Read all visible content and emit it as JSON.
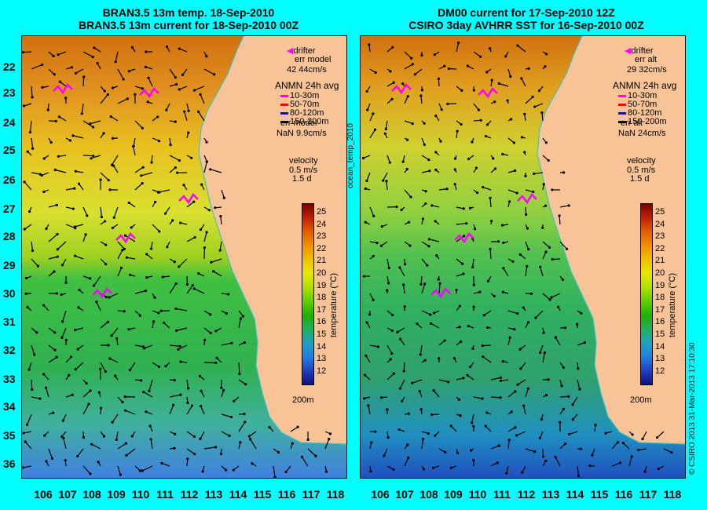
{
  "left": {
    "title1": "BRAN3.5 13m temp. 18-Sep-2010",
    "title2": "BRAN3.5 13m current for 18-Sep-2010 00Z",
    "drifter": "drifter",
    "err_model_1": "err model",
    "err_value_1": "42 44cm/s",
    "anmn": "ANMN 24h avg",
    "depths": [
      "10-30m",
      "50-70m",
      "80-120m",
      "150-200m"
    ],
    "err_model_2": "err model",
    "err_value_2": "NaN 9.9cm/s",
    "velocity": "velocity",
    "vel1": "0.5 m/s",
    "vel2": "1.5 d",
    "isobath": "200m"
  },
  "right": {
    "title1": "DM00 current for 17-Sep-2010 12Z",
    "title2": "CSIRO 3day AVHRR SST for 16-Sep-2010 00Z",
    "drifter": "drifter",
    "err_model_1": "err alt",
    "err_value_1": "29 32cm/s",
    "anmn": "ANMN 24h avg",
    "depths": [
      "10-30m",
      "50-70m",
      "80-120m",
      "150-200m"
    ],
    "err_model_2": "err alt",
    "err_value_2": "NaN 24cm/s",
    "velocity": "velocity",
    "vel1": "0.5 m/s",
    "vel2": "1.5 d",
    "isobath": "200m"
  },
  "lat_labels": [
    "22",
    "23",
    "24",
    "25",
    "26",
    "27",
    "28",
    "29",
    "30",
    "31",
    "32",
    "33",
    "34",
    "35",
    "36"
  ],
  "lon_labels": [
    "106",
    "107",
    "108",
    "109",
    "110",
    "111",
    "112",
    "113",
    "114",
    "115",
    "116",
    "117",
    "118"
  ],
  "colorbar": {
    "ticks": [
      "25",
      "24",
      "23",
      "22",
      "21",
      "20",
      "19",
      "18",
      "17",
      "16",
      "15",
      "14",
      "13",
      "12"
    ],
    "label": "temperature (°C)"
  },
  "side_label": "ocean_temp_2010",
  "copyright": "© CSIRO 2013   31-Mar-2013 17:10:30",
  "colors": {
    "background": "#00FFFF",
    "land": "#F8C497",
    "coast": "#40C0C0"
  }
}
